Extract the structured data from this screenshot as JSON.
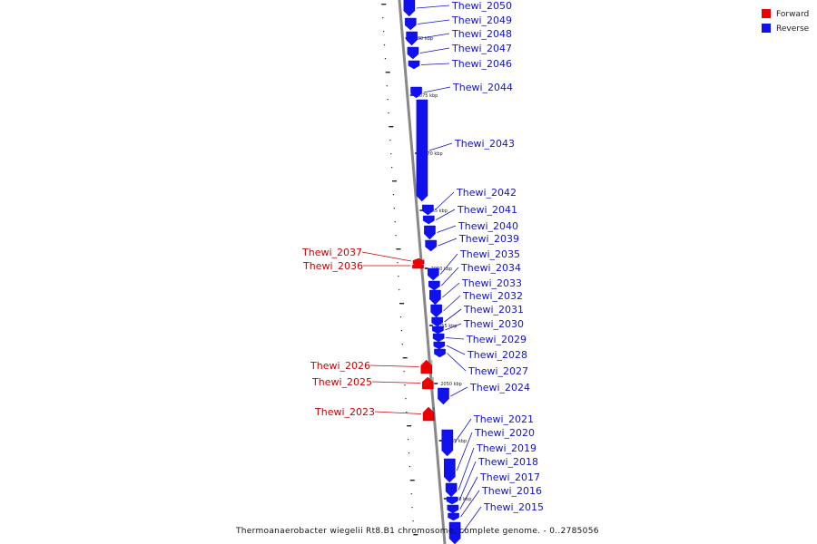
{
  "colors": {
    "forward": "#ee0000",
    "reverse": "#1111ee",
    "backbone": "#888888",
    "label_forward": "#cc0000",
    "label_reverse": "#1111cc"
  },
  "legend": {
    "forward": "Forward",
    "reverse": "Reverse"
  },
  "caption": "Thermoanaerobacter wiegelii Rt8.B1 chromosome, complete genome. - 0..2785056",
  "scale_ticks": [
    "2080 kbp",
    "2075 kbp",
    "2070 kbp",
    "2065 kbp",
    "2060 kbp",
    "2055 kbp",
    "2050 kbp",
    "2045 kbp",
    "2040 kbp"
  ],
  "genes": [
    {
      "id": "Thewi_2050",
      "strand": "reverse"
    },
    {
      "id": "Thewi_2049",
      "strand": "reverse"
    },
    {
      "id": "Thewi_2048",
      "strand": "reverse"
    },
    {
      "id": "Thewi_2047",
      "strand": "reverse"
    },
    {
      "id": "Thewi_2046",
      "strand": "reverse"
    },
    {
      "id": "Thewi_2044",
      "strand": "reverse"
    },
    {
      "id": "Thewi_2043",
      "strand": "reverse"
    },
    {
      "id": "Thewi_2042",
      "strand": "reverse"
    },
    {
      "id": "Thewi_2041",
      "strand": "reverse"
    },
    {
      "id": "Thewi_2040",
      "strand": "reverse"
    },
    {
      "id": "Thewi_2039",
      "strand": "reverse"
    },
    {
      "id": "Thewi_2037",
      "strand": "forward"
    },
    {
      "id": "Thewi_2036",
      "strand": "forward"
    },
    {
      "id": "Thewi_2035",
      "strand": "reverse"
    },
    {
      "id": "Thewi_2034",
      "strand": "reverse"
    },
    {
      "id": "Thewi_2033",
      "strand": "reverse"
    },
    {
      "id": "Thewi_2032",
      "strand": "reverse"
    },
    {
      "id": "Thewi_2031",
      "strand": "reverse"
    },
    {
      "id": "Thewi_2030",
      "strand": "reverse"
    },
    {
      "id": "Thewi_2029",
      "strand": "reverse"
    },
    {
      "id": "Thewi_2028",
      "strand": "reverse"
    },
    {
      "id": "Thewi_2027",
      "strand": "reverse"
    },
    {
      "id": "Thewi_2026",
      "strand": "forward"
    },
    {
      "id": "Thewi_2025",
      "strand": "forward"
    },
    {
      "id": "Thewi_2024",
      "strand": "reverse"
    },
    {
      "id": "Thewi_2023",
      "strand": "forward"
    },
    {
      "id": "Thewi_2021",
      "strand": "reverse"
    },
    {
      "id": "Thewi_2020",
      "strand": "reverse"
    },
    {
      "id": "Thewi_2019",
      "strand": "reverse"
    },
    {
      "id": "Thewi_2018",
      "strand": "reverse"
    },
    {
      "id": "Thewi_2017",
      "strand": "reverse"
    },
    {
      "id": "Thewi_2016",
      "strand": "reverse"
    },
    {
      "id": "Thewi_2015",
      "strand": "reverse"
    }
  ]
}
